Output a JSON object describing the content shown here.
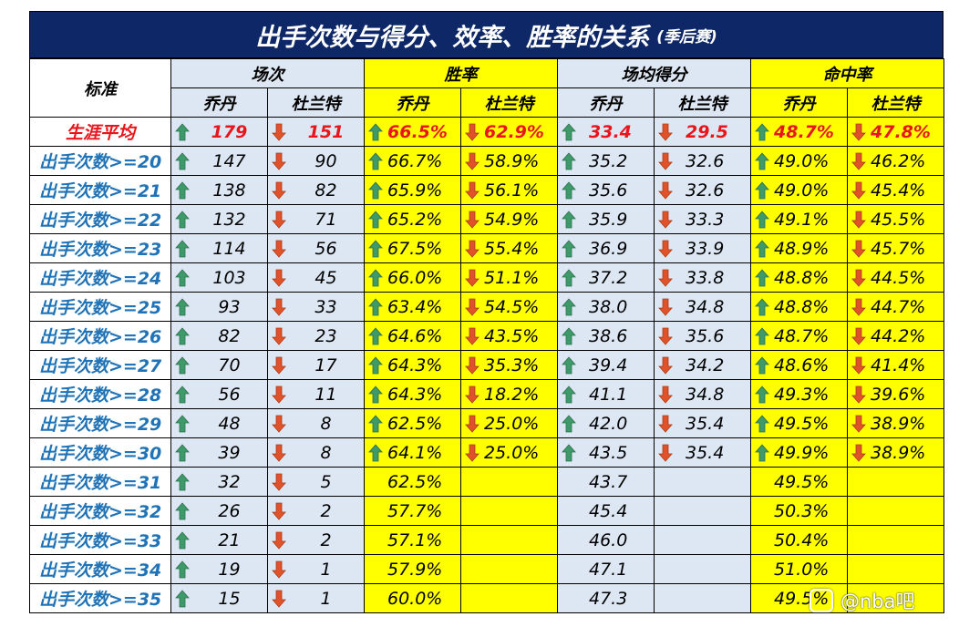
{
  "title": {
    "main": "出手次数与得分、效率、胜率的关系",
    "sub": "(季后赛)"
  },
  "header": {
    "criterion": "标准",
    "groups": [
      "场次",
      "胜率",
      "场均得分",
      "命中率"
    ],
    "players": [
      "乔丹",
      "杜兰特"
    ]
  },
  "colors": {
    "title_bg": "#0e2767",
    "up_arrow": "#3f9a6a",
    "down_arrow": "#e0532a",
    "label_text": "#1f73b6",
    "career_text": "#e8151d",
    "yellow": "#ffff00",
    "light_blue": "#dde7f3"
  },
  "rows": [
    {
      "label": "生涯平均",
      "career": true,
      "cells": [
        [
          "179",
          1
        ],
        [
          "151",
          -1
        ],
        [
          "66.5%",
          1
        ],
        [
          "62.9%",
          -1
        ],
        [
          "33.4",
          1
        ],
        [
          "29.5",
          -1
        ],
        [
          "48.7%",
          1
        ],
        [
          "47.8%",
          -1
        ]
      ]
    },
    {
      "label": "出手次数>=20",
      "cells": [
        [
          "147",
          1
        ],
        [
          "90",
          -1
        ],
        [
          "66.7%",
          1
        ],
        [
          "58.9%",
          -1
        ],
        [
          "35.2",
          1
        ],
        [
          "32.6",
          -1
        ],
        [
          "49.0%",
          1
        ],
        [
          "46.2%",
          -1
        ]
      ]
    },
    {
      "label": "出手次数>=21",
      "cells": [
        [
          "138",
          1
        ],
        [
          "82",
          -1
        ],
        [
          "65.9%",
          1
        ],
        [
          "56.1%",
          -1
        ],
        [
          "35.6",
          1
        ],
        [
          "32.6",
          -1
        ],
        [
          "49.0%",
          1
        ],
        [
          "45.4%",
          -1
        ]
      ]
    },
    {
      "label": "出手次数>=22",
      "cells": [
        [
          "132",
          1
        ],
        [
          "71",
          -1
        ],
        [
          "65.2%",
          1
        ],
        [
          "54.9%",
          -1
        ],
        [
          "35.9",
          1
        ],
        [
          "33.3",
          -1
        ],
        [
          "49.1%",
          1
        ],
        [
          "45.5%",
          -1
        ]
      ]
    },
    {
      "label": "出手次数>=23",
      "cells": [
        [
          "114",
          1
        ],
        [
          "56",
          -1
        ],
        [
          "67.5%",
          1
        ],
        [
          "55.4%",
          -1
        ],
        [
          "36.9",
          1
        ],
        [
          "33.9",
          -1
        ],
        [
          "48.9%",
          1
        ],
        [
          "45.7%",
          -1
        ]
      ]
    },
    {
      "label": "出手次数>=24",
      "cells": [
        [
          "103",
          1
        ],
        [
          "45",
          -1
        ],
        [
          "66.0%",
          1
        ],
        [
          "51.1%",
          -1
        ],
        [
          "37.2",
          1
        ],
        [
          "33.8",
          -1
        ],
        [
          "48.8%",
          1
        ],
        [
          "44.5%",
          -1
        ]
      ]
    },
    {
      "label": "出手次数>=25",
      "cells": [
        [
          "93",
          1
        ],
        [
          "33",
          -1
        ],
        [
          "63.4%",
          1
        ],
        [
          "54.5%",
          -1
        ],
        [
          "38.0",
          1
        ],
        [
          "34.8",
          -1
        ],
        [
          "48.8%",
          1
        ],
        [
          "44.7%",
          -1
        ]
      ]
    },
    {
      "label": "出手次数>=26",
      "cells": [
        [
          "82",
          1
        ],
        [
          "23",
          -1
        ],
        [
          "64.6%",
          1
        ],
        [
          "43.5%",
          -1
        ],
        [
          "38.6",
          1
        ],
        [
          "35.6",
          -1
        ],
        [
          "48.7%",
          1
        ],
        [
          "44.2%",
          -1
        ]
      ]
    },
    {
      "label": "出手次数>=27",
      "cells": [
        [
          "70",
          1
        ],
        [
          "17",
          -1
        ],
        [
          "64.3%",
          1
        ],
        [
          "35.3%",
          -1
        ],
        [
          "39.4",
          1
        ],
        [
          "34.2",
          -1
        ],
        [
          "48.6%",
          1
        ],
        [
          "41.4%",
          -1
        ]
      ]
    },
    {
      "label": "出手次数>=28",
      "cells": [
        [
          "56",
          1
        ],
        [
          "11",
          -1
        ],
        [
          "64.3%",
          1
        ],
        [
          "18.2%",
          -1
        ],
        [
          "41.1",
          1
        ],
        [
          "34.8",
          -1
        ],
        [
          "49.3%",
          1
        ],
        [
          "39.6%",
          -1
        ]
      ]
    },
    {
      "label": "出手次数>=29",
      "cells": [
        [
          "48",
          1
        ],
        [
          "8",
          -1
        ],
        [
          "62.5%",
          1
        ],
        [
          "25.0%",
          -1
        ],
        [
          "42.0",
          1
        ],
        [
          "35.4",
          -1
        ],
        [
          "49.5%",
          1
        ],
        [
          "38.9%",
          -1
        ]
      ]
    },
    {
      "label": "出手次数>=30",
      "cells": [
        [
          "39",
          1
        ],
        [
          "8",
          -1
        ],
        [
          "64.1%",
          1
        ],
        [
          "25.0%",
          -1
        ],
        [
          "43.5",
          1
        ],
        [
          "35.4",
          -1
        ],
        [
          "49.9%",
          1
        ],
        [
          "38.9%",
          -1
        ]
      ]
    },
    {
      "label": "出手次数>=31",
      "cells": [
        [
          "32",
          1
        ],
        [
          "5",
          -1
        ],
        [
          "62.5%",
          0
        ],
        [
          "",
          0
        ],
        [
          "43.7",
          0
        ],
        [
          "",
          0
        ],
        [
          "49.5%",
          0
        ],
        [
          "",
          0
        ]
      ]
    },
    {
      "label": "出手次数>=32",
      "cells": [
        [
          "26",
          1
        ],
        [
          "2",
          -1
        ],
        [
          "57.7%",
          0
        ],
        [
          "",
          0
        ],
        [
          "45.4",
          0
        ],
        [
          "",
          0
        ],
        [
          "50.3%",
          0
        ],
        [
          "",
          0
        ]
      ]
    },
    {
      "label": "出手次数>=33",
      "cells": [
        [
          "21",
          1
        ],
        [
          "2",
          -1
        ],
        [
          "57.1%",
          0
        ],
        [
          "",
          0
        ],
        [
          "46.0",
          0
        ],
        [
          "",
          0
        ],
        [
          "50.4%",
          0
        ],
        [
          "",
          0
        ]
      ]
    },
    {
      "label": "出手次数>=34",
      "cells": [
        [
          "19",
          1
        ],
        [
          "1",
          -1
        ],
        [
          "57.9%",
          0
        ],
        [
          "",
          0
        ],
        [
          "47.1",
          0
        ],
        [
          "",
          0
        ],
        [
          "51.0%",
          0
        ],
        [
          "",
          0
        ]
      ]
    },
    {
      "label": "出手次数>=35",
      "cells": [
        [
          "15",
          1
        ],
        [
          "1",
          -1
        ],
        [
          "60.0%",
          0
        ],
        [
          "",
          0
        ],
        [
          "47.3",
          0
        ],
        [
          "",
          0
        ],
        [
          "49.5%",
          0
        ],
        [
          "",
          0
        ]
      ]
    }
  ],
  "watermark": "@nba吧"
}
